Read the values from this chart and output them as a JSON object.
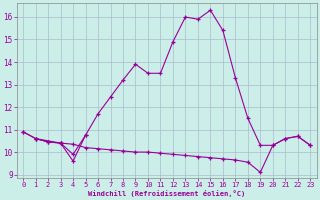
{
  "xlabel": "Windchill (Refroidissement éolien,°C)",
  "background_color": "#cceee8",
  "grid_color": "#aabbcc",
  "line_color": "#990099",
  "main_curve_x": [
    3,
    4,
    5,
    6,
    7,
    8,
    9,
    10,
    11,
    12,
    13,
    14,
    15,
    16,
    17,
    18,
    19,
    20,
    21,
    22,
    23
  ],
  "main_curve_y": [
    10.4,
    9.6,
    10.75,
    11.7,
    12.45,
    13.2,
    13.9,
    13.5,
    13.5,
    14.9,
    16.0,
    15.9,
    16.3,
    15.4,
    13.3,
    11.5,
    10.3,
    10.3,
    10.6,
    10.7,
    10.3
  ],
  "early_curve_x": [
    0,
    1,
    3,
    4,
    5
  ],
  "early_curve_y": [
    10.9,
    10.6,
    10.4,
    9.9,
    10.75
  ],
  "baseline_x": [
    0,
    1,
    2,
    3,
    4,
    5,
    6,
    7,
    8,
    9,
    10,
    11,
    12,
    13,
    14,
    15,
    16,
    17,
    18,
    19,
    20,
    21,
    22,
    23
  ],
  "baseline_y": [
    10.9,
    10.6,
    10.45,
    10.4,
    10.35,
    10.2,
    10.15,
    10.1,
    10.05,
    10.0,
    10.0,
    9.95,
    9.9,
    9.85,
    9.8,
    9.75,
    9.7,
    9.65,
    9.55,
    9.1,
    10.3,
    10.6,
    10.7,
    10.3
  ],
  "flat_line_x": [
    3,
    19
  ],
  "flat_line_y": [
    10.4,
    10.3
  ],
  "ylim": [
    8.85,
    16.6
  ],
  "yticks": [
    9,
    10,
    11,
    12,
    13,
    14,
    15,
    16
  ],
  "xlim": [
    -0.5,
    23.5
  ],
  "xticks": [
    0,
    1,
    2,
    3,
    4,
    5,
    6,
    7,
    8,
    9,
    10,
    11,
    12,
    13,
    14,
    15,
    16,
    17,
    18,
    19,
    20,
    21,
    22,
    23
  ]
}
